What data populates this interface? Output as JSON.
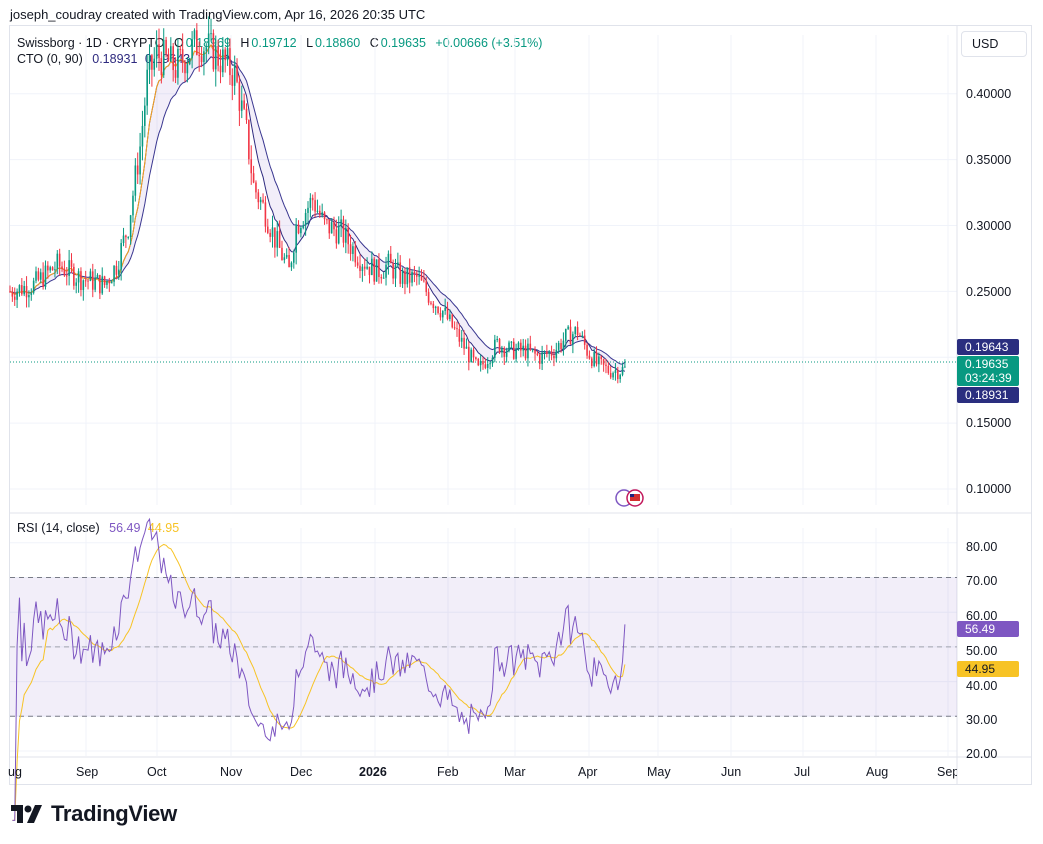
{
  "header": {
    "caption": "joseph_coudray created with TradingView.com, Apr 16, 2026 20:35 UTC"
  },
  "legend": {
    "symbol": "Swissborg · 1D · CRYPTO",
    "o_label": "O",
    "o_value": "0.18969",
    "h_label": "H",
    "h_value": "0.19712",
    "l_label": "L",
    "l_value": "0.18860",
    "c_label": "C",
    "c_value": "0.19635",
    "change": "+0.00666 (+3.51%)",
    "cto_label": "CTO (0, 90)",
    "cto_v1": "0.18931",
    "cto_v2": "0.19643",
    "rsi_label": "RSI (14, close)",
    "rsi_v": "56.49",
    "rsi_ma": "44.95"
  },
  "currency": "USD",
  "price_axis": [
    "0.40000",
    "0.35000",
    "0.30000",
    "0.25000",
    "0.15000",
    "0.10000"
  ],
  "price_tags": {
    "upper": "0.19643",
    "last": "0.19635",
    "countdown": "03:24:39",
    "lower": "0.18931"
  },
  "rsi_axis": [
    "80.00",
    "70.00",
    "60.00",
    "50.00",
    "40.00",
    "30.00",
    "20.00"
  ],
  "rsi_tags": {
    "rsi": "56.49",
    "ma": "44.95"
  },
  "time_axis": [
    "ug",
    "Sep",
    "Oct",
    "Nov",
    "Dec",
    "2026",
    "Feb",
    "Mar",
    "Apr",
    "May",
    "Jun",
    "Jul",
    "Aug",
    "Sep"
  ],
  "brand": "TradingView",
  "colors": {
    "up": "#089981",
    "down": "#f23645",
    "cto_fast": "#f7a21b",
    "cto_slow": "#2e2a7f",
    "rsi": "#7e57c2",
    "rsi_ma": "#f7c325",
    "last_tag": "#089981"
  },
  "chart_data": {
    "type": "candlestick",
    "symbol": "Swissborg",
    "interval": "1D",
    "ylim": [
      0.085,
      0.435
    ],
    "price_series_monthly_approx": {
      "x": [
        "Aug",
        "Sep",
        "Oct",
        "Nov",
        "Dec",
        "2026",
        "Feb",
        "Mar",
        "Apr"
      ],
      "close": [
        0.25,
        0.3,
        0.4,
        0.42,
        0.3,
        0.245,
        0.195,
        0.205,
        0.196
      ]
    },
    "last": {
      "open": 0.18969,
      "high": 0.19712,
      "low": 0.1886,
      "close": 0.19635,
      "change": 0.00666,
      "change_pct": 3.51
    },
    "cto": {
      "fast": 0.18931,
      "slow": 0.19643
    },
    "rsi": {
      "period": 14,
      "value": 56.49,
      "ma": 44.95,
      "ylim": [
        18,
        85
      ],
      "bands": [
        30,
        50,
        70
      ]
    },
    "rsi_series_monthly_approx": {
      "x": [
        "Aug",
        "Sep",
        "Oct",
        "Nov",
        "Dec",
        "2026",
        "Feb",
        "Mar",
        "Apr"
      ],
      "rsi": [
        58,
        55,
        68,
        38,
        48,
        38,
        42,
        55,
        56.49
      ]
    }
  }
}
